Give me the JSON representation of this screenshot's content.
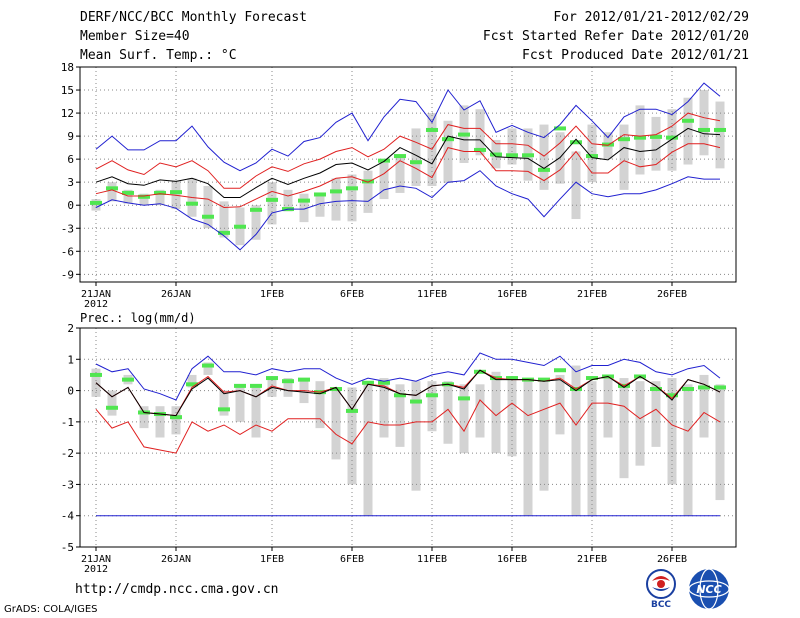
{
  "header": {
    "title": "DERF/NCC/BCC Monthly Forecast",
    "member_size": "Member Size=40",
    "variable": "Mean Surf. Temp.: °C",
    "period": "For 2012/01/21-2012/02/29",
    "started": "Fcst Started Refer Date 2012/01/20",
    "produced": "Fcst Produced Date 2012/01/21"
  },
  "footer": {
    "url": "http://cmdp.ncc.cma.gov.cn",
    "credit": "GrADS: COLA/IGES",
    "logo_bcc": "BCC",
    "logo_ncc": "NCC"
  },
  "colors": {
    "box": "#d3d3d3",
    "median": "#50e650",
    "mean": "#000000",
    "sd": "#e02020",
    "extreme": "#2020d0",
    "grid": "#888888"
  },
  "chart_data": [
    {
      "type": "line",
      "title": "Mean Surf. Temp.: °C",
      "x_tick_labels": [
        "21JAN\n2012",
        "26JAN",
        "1FEB",
        "6FEB",
        "11FEB",
        "16FEB",
        "21FEB",
        "26FEB"
      ],
      "x_tick_days": [
        1,
        6,
        12,
        17,
        22,
        27,
        32,
        37
      ],
      "x": [
        1,
        2,
        3,
        4,
        5,
        6,
        7,
        8,
        9,
        10,
        11,
        12,
        13,
        14,
        15,
        16,
        17,
        18,
        19,
        20,
        21,
        22,
        23,
        24,
        25,
        26,
        27,
        28,
        29,
        30,
        31,
        32,
        33,
        34,
        35,
        36,
        37,
        38,
        39,
        40
      ],
      "ylim": [
        -10,
        18
      ],
      "y_ticks": [
        -9,
        -6,
        -3,
        0,
        3,
        6,
        9,
        12,
        15,
        18
      ],
      "grid": true,
      "series": [
        {
          "name": "box_low",
          "values": [
            -0.7,
            0.5,
            0.2,
            0,
            0,
            -0.5,
            -1.5,
            -3,
            -4.2,
            -5.2,
            -4.5,
            -2.5,
            -0.8,
            -2.2,
            -1.5,
            -2,
            -2.1,
            -1,
            0.8,
            1.6,
            2.5,
            2.5,
            2.9,
            5.5,
            6.5,
            4.8,
            5.3,
            3.2,
            2,
            2.8,
            -1.8,
            3,
            6,
            2,
            4,
            4.5,
            4.5,
            5.3,
            6.5,
            4.8
          ]
        },
        {
          "name": "box_high",
          "values": [
            0.8,
            3,
            2,
            1.5,
            2,
            3.2,
            3.5,
            2.5,
            0.5,
            -0.3,
            0,
            3,
            2,
            1.5,
            1.5,
            3.5,
            4,
            4.5,
            5.5,
            6.5,
            10,
            12,
            11,
            13,
            12.5,
            8.5,
            10,
            10,
            10.5,
            9.5,
            7,
            10.5,
            9.5,
            10.5,
            13,
            11.5,
            12.5,
            14,
            15,
            13.5
          ]
        },
        {
          "name": "median",
          "values": [
            0.3,
            2.2,
            1.6,
            1.1,
            1.6,
            1.7,
            0.2,
            -1.5,
            -3.6,
            -2.8,
            -0.6,
            0.7,
            -0.5,
            0.6,
            1.4,
            1.8,
            2.2,
            3.1,
            5.8,
            6.4,
            5.6,
            9.8,
            8.6,
            9.2,
            7.2,
            6.6,
            6.5,
            6.5,
            4.6,
            10,
            8.2,
            6.4,
            7.9,
            8.6,
            8.8,
            8.9,
            8.8,
            11,
            9.8,
            9.8
          ]
        },
        {
          "name": "mean",
          "values": [
            3,
            3.7,
            2.8,
            2.6,
            3.3,
            3.1,
            3.5,
            2.8,
            1,
            1,
            2.3,
            3.5,
            2.7,
            3.5,
            4.2,
            5.3,
            5.5,
            4.6,
            5.7,
            7.5,
            6.5,
            5.4,
            9,
            8.5,
            8.5,
            6.3,
            6.2,
            6.1,
            4.8,
            6.2,
            8.6,
            6.2,
            5.9,
            7.5,
            7,
            7.2,
            8.6,
            10,
            9.3,
            9.2
          ]
        },
        {
          "name": "plus_sd",
          "values": [
            4.7,
            5.8,
            4.6,
            4,
            5.5,
            5,
            5.8,
            4.5,
            2.2,
            2.2,
            3.8,
            5,
            4.4,
            5.4,
            6,
            7,
            7.5,
            6.3,
            7.3,
            9,
            8.2,
            7.3,
            10.5,
            10,
            10,
            8,
            8,
            7.8,
            6.4,
            8.1,
            10.3,
            8,
            7.8,
            9.2,
            9,
            9.2,
            10.3,
            12,
            11.4,
            11
          ]
        },
        {
          "name": "minus_sd",
          "values": [
            1.5,
            2,
            1.2,
            1.2,
            1.5,
            1.3,
            1,
            0.8,
            -0.3,
            -0.2,
            0.8,
            1.8,
            1.2,
            1.8,
            2.5,
            3.5,
            3.7,
            3,
            4.1,
            5.8,
            4.8,
            3.6,
            7.5,
            7,
            7,
            4.5,
            4.5,
            4.4,
            3.2,
            4.6,
            7,
            4.2,
            4.2,
            5.8,
            5,
            5.3,
            6.9,
            8,
            8,
            7.5
          ]
        },
        {
          "name": "max",
          "values": [
            7.3,
            9,
            7.2,
            7.2,
            8.4,
            8.4,
            10.3,
            7.6,
            5.6,
            4.5,
            5.5,
            7.3,
            6.4,
            8.3,
            8.8,
            10.8,
            12,
            8.4,
            11.5,
            13.8,
            13.5,
            10.8,
            15,
            12.4,
            13.6,
            9.5,
            10.4,
            9.5,
            8.8,
            10.5,
            13,
            11,
            8.8,
            11.5,
            12.5,
            12.5,
            11.8,
            13.5,
            15.9,
            14.2
          ]
        },
        {
          "name": "min",
          "values": [
            -0.3,
            0.7,
            0.3,
            0,
            0.2,
            -0.4,
            -1.8,
            -2.5,
            -4,
            -5.8,
            -3.8,
            -1,
            -0.5,
            -0.5,
            0.2,
            0.5,
            0.6,
            0.5,
            2,
            2.5,
            2.2,
            1,
            3,
            3.2,
            4.5,
            2.5,
            1.5,
            0.8,
            -1.5,
            0.8,
            3,
            1.5,
            1.1,
            1.5,
            1.5,
            2,
            2.8,
            3.7,
            3.4,
            3.4
          ]
        }
      ]
    },
    {
      "type": "line",
      "title": "Prec.: log(mm/d)",
      "x_tick_labels": [
        "21JAN\n2012",
        "26JAN",
        "1FEB",
        "6FEB",
        "11FEB",
        "16FEB",
        "21FEB",
        "26FEB"
      ],
      "x_tick_days": [
        1,
        6,
        12,
        17,
        22,
        27,
        32,
        37
      ],
      "x": [
        1,
        2,
        3,
        4,
        5,
        6,
        7,
        8,
        9,
        10,
        11,
        12,
        13,
        14,
        15,
        16,
        17,
        18,
        19,
        20,
        21,
        22,
        23,
        24,
        25,
        26,
        27,
        28,
        29,
        30,
        31,
        32,
        33,
        34,
        35,
        36,
        37,
        38,
        39,
        40
      ],
      "ylim": [
        -5,
        2
      ],
      "y_ticks": [
        -5,
        -4,
        -3,
        -2,
        -1,
        0,
        1,
        2
      ],
      "grid": true,
      "series": [
        {
          "name": "box_low",
          "values": [
            -0.2,
            -0.8,
            0.2,
            -1.2,
            -1.5,
            -1.4,
            0.1,
            0.5,
            -0.8,
            -1,
            -1.5,
            -0.2,
            -0.2,
            -0.4,
            -1.2,
            -2.2,
            -3,
            -4,
            -1.5,
            -1.8,
            -3.2,
            -1.3,
            -1.7,
            -2,
            -1.5,
            -2,
            -2.1,
            -4,
            -3.2,
            -1.4,
            -4,
            -4,
            -1.5,
            -2.8,
            -2.4,
            -1.8,
            -3,
            -4,
            -1.5,
            -3.5
          ]
        },
        {
          "name": "box_high",
          "values": [
            0.7,
            0,
            0.5,
            -0.5,
            -0.5,
            -0.5,
            0.5,
            0.9,
            0,
            0.1,
            0.1,
            0.4,
            0.4,
            0.3,
            0.3,
            0.1,
            0.1,
            0.3,
            0.4,
            0.2,
            0.3,
            0.3,
            0.3,
            0.2,
            0.2,
            0.6,
            0.4,
            0.3,
            0.4,
            0.5,
            0.8,
            0.3,
            0.5,
            0.4,
            0.3,
            0.3,
            0.4,
            0.2,
            0.5,
            0.2
          ]
        },
        {
          "name": "median",
          "values": [
            0.5,
            -0.55,
            0.35,
            -0.7,
            -0.75,
            -0.85,
            0.2,
            0.8,
            -0.6,
            0.15,
            0.15,
            0.4,
            0.3,
            0.35,
            -0.05,
            0.05,
            -0.65,
            0.25,
            0.25,
            -0.15,
            -0.35,
            -0.15,
            0.2,
            -0.25,
            0.6,
            0.4,
            0.4,
            0.35,
            0.35,
            0.65,
            0.05,
            0.4,
            0.45,
            0.15,
            0.45,
            0.05,
            -0.15,
            0.05,
            0.1,
            0.1
          ]
        },
        {
          "name": "mean",
          "values": [
            0.25,
            -0.2,
            0.1,
            -0.7,
            -0.75,
            -0.8,
            0.05,
            0.4,
            -0.1,
            0,
            -0.2,
            0.1,
            0,
            -0.05,
            -0.1,
            0.1,
            -0.6,
            0.2,
            0.1,
            -0.1,
            -0.15,
            0.15,
            0.2,
            0.05,
            0.65,
            0.35,
            0.35,
            0.35,
            0.3,
            0.35,
            0,
            0.35,
            0.45,
            0.1,
            0.45,
            0.15,
            -0.3,
            0.35,
            0.2,
            -0.05
          ]
        },
        {
          "name": "plus_sd",
          "values": [
            0.25,
            -0.2,
            0.1,
            -0.7,
            -0.75,
            -0.8,
            0.1,
            0.45,
            -0.05,
            0,
            -0.2,
            0.15,
            0,
            0,
            -0.05,
            0.1,
            -0.6,
            0.2,
            0.15,
            -0.1,
            -0.15,
            0.15,
            0.2,
            0.1,
            0.65,
            0.4,
            0.35,
            0.35,
            0.3,
            0.4,
            0.05,
            0.35,
            0.45,
            0.15,
            0.45,
            0.15,
            -0.25,
            0.35,
            0.2,
            -0.05
          ]
        },
        {
          "name": "minus_sd",
          "values": [
            -0.6,
            -1.2,
            -1,
            -1.8,
            -1.9,
            -2,
            -1,
            -1.3,
            -1.1,
            -1.4,
            -1.1,
            -1.3,
            -0.9,
            -0.9,
            -0.9,
            -1.4,
            -1.7,
            -1,
            -1.1,
            -1.1,
            -1,
            -1,
            -0.6,
            -1.3,
            -0.3,
            -0.8,
            -0.4,
            -0.8,
            -0.6,
            -0.4,
            -1.1,
            -0.4,
            -0.4,
            -0.5,
            -0.9,
            -0.6,
            -1.1,
            -1.3,
            -0.7,
            -1
          ]
        },
        {
          "name": "max",
          "values": [
            0.85,
            0.6,
            0.7,
            0.05,
            -0.1,
            -0.3,
            0.7,
            1.1,
            0.6,
            0.6,
            0.5,
            0.7,
            0.6,
            0.7,
            0.7,
            0.4,
            0.2,
            0.4,
            0.3,
            0.4,
            0.3,
            0.5,
            0.6,
            0.5,
            1.2,
            1,
            1,
            0.9,
            0.8,
            1.1,
            0.6,
            0.8,
            0.8,
            1,
            0.9,
            0.6,
            0.5,
            0.7,
            0.8,
            0.4
          ]
        },
        {
          "name": "min",
          "values": [
            -4,
            -4,
            -4,
            -4,
            -4,
            -4,
            -4,
            -4,
            -4,
            -4,
            -4,
            -4,
            -4,
            -4,
            -4,
            -4,
            -4,
            -4,
            -4,
            -4,
            -4,
            -4,
            -4,
            -4,
            -4,
            -4,
            -4,
            -4,
            -4,
            -4,
            -4,
            -4,
            -4,
            -4,
            -4,
            -4,
            -4,
            -4,
            -4,
            -4
          ]
        }
      ]
    }
  ]
}
